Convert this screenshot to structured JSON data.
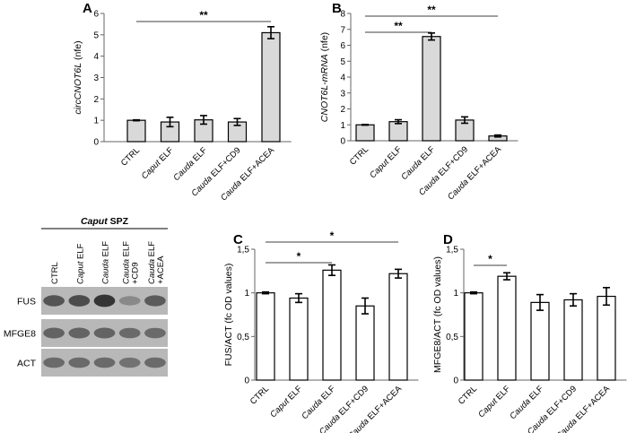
{
  "chart_data": [
    {
      "type": "bar",
      "panel": "A",
      "ylabel": "circCNOT6L (nfe)",
      "ylabel_italic": "circCNOT6L",
      "ylabel_suffix": " (nfe)",
      "ylim": [
        0,
        6
      ],
      "yticks": [
        "0",
        "1",
        "2",
        "3",
        "4",
        "5",
        "6"
      ],
      "categories": [
        "CTRL",
        "Caput ELF",
        "Cauda ELF",
        "Cauda ELF+CD9",
        "Cauda ELF+ACEA"
      ],
      "values": [
        1.0,
        0.92,
        1.02,
        0.92,
        5.1
      ],
      "errors": [
        0.02,
        0.22,
        0.2,
        0.16,
        0.28
      ],
      "bar_color": "#d9d9d9",
      "significance": [
        {
          "from": 0,
          "to": 4,
          "label": "**"
        }
      ]
    },
    {
      "type": "bar",
      "panel": "B",
      "ylabel": "CNOT6L-mRNA (nfe)",
      "ylabel_italic": "CNOT6L-mRNA",
      "ylabel_suffix": " (nfe)",
      "ylim": [
        0,
        8
      ],
      "yticks": [
        "0",
        "1",
        "2",
        "3",
        "4",
        "5",
        "6",
        "7",
        "8"
      ],
      "categories": [
        "CTRL",
        "Caput ELF",
        "Cauda ELF",
        "Cauda ELF+CD9",
        "Cauda ELF+ACEA"
      ],
      "values": [
        1.0,
        1.2,
        6.55,
        1.3,
        0.3
      ],
      "errors": [
        0.02,
        0.12,
        0.22,
        0.2,
        0.06
      ],
      "bar_color": "#d9d9d9",
      "significance": [
        {
          "from": 0,
          "to": 2,
          "label": "**"
        },
        {
          "from": 0,
          "to": 4,
          "label": "**"
        }
      ]
    },
    {
      "type": "bar",
      "panel": "C",
      "ylabel": "FUS/ACT (fc OD values)",
      "ylim": [
        0,
        1.5
      ],
      "yticks": [
        "0",
        "0,5",
        "1",
        "1,5"
      ],
      "categories": [
        "CTRL",
        "Caput ELF",
        "Cauda ELF",
        "Cauda ELF+CD9",
        "Cauda ELF+ACEA"
      ],
      "values": [
        1.0,
        0.94,
        1.26,
        0.85,
        1.22
      ],
      "errors": [
        0.01,
        0.05,
        0.06,
        0.09,
        0.05
      ],
      "bar_color": "#ffffff",
      "significance": [
        {
          "from": 0,
          "to": 2,
          "label": "*"
        },
        {
          "from": 0,
          "to": 4,
          "label": "*"
        }
      ]
    },
    {
      "type": "bar",
      "panel": "D",
      "ylabel": "MFGE8/ACT (fc OD values)",
      "ylim": [
        0,
        1.5
      ],
      "yticks": [
        "0",
        "0,5",
        "1",
        "1,5"
      ],
      "categories": [
        "CTRL",
        "Caput ELF",
        "Cauda ELF",
        "Cauda ELF+CD9",
        "Cauda ELF+ACEA"
      ],
      "values": [
        1.0,
        1.19,
        0.89,
        0.92,
        0.96
      ],
      "errors": [
        0.01,
        0.04,
        0.09,
        0.07,
        0.1
      ],
      "bar_color": "#ffffff",
      "significance": [
        {
          "from": 0,
          "to": 1,
          "label": "*"
        }
      ]
    }
  ],
  "western_blot": {
    "title_italic": "Caput",
    "title_rest": " SPZ",
    "lanes": [
      "CTRL",
      "Caput ELF",
      "Cauda ELF",
      "Cauda ELF +CD9",
      "Cauda ELF +ACEA"
    ],
    "rows": [
      "FUS",
      "MFGE8",
      "ACT"
    ],
    "band_intensity": [
      [
        0.75,
        0.8,
        0.95,
        0.4,
        0.7
      ],
      [
        0.65,
        0.65,
        0.65,
        0.6,
        0.6
      ],
      [
        0.6,
        0.6,
        0.6,
        0.55,
        0.6
      ]
    ]
  }
}
